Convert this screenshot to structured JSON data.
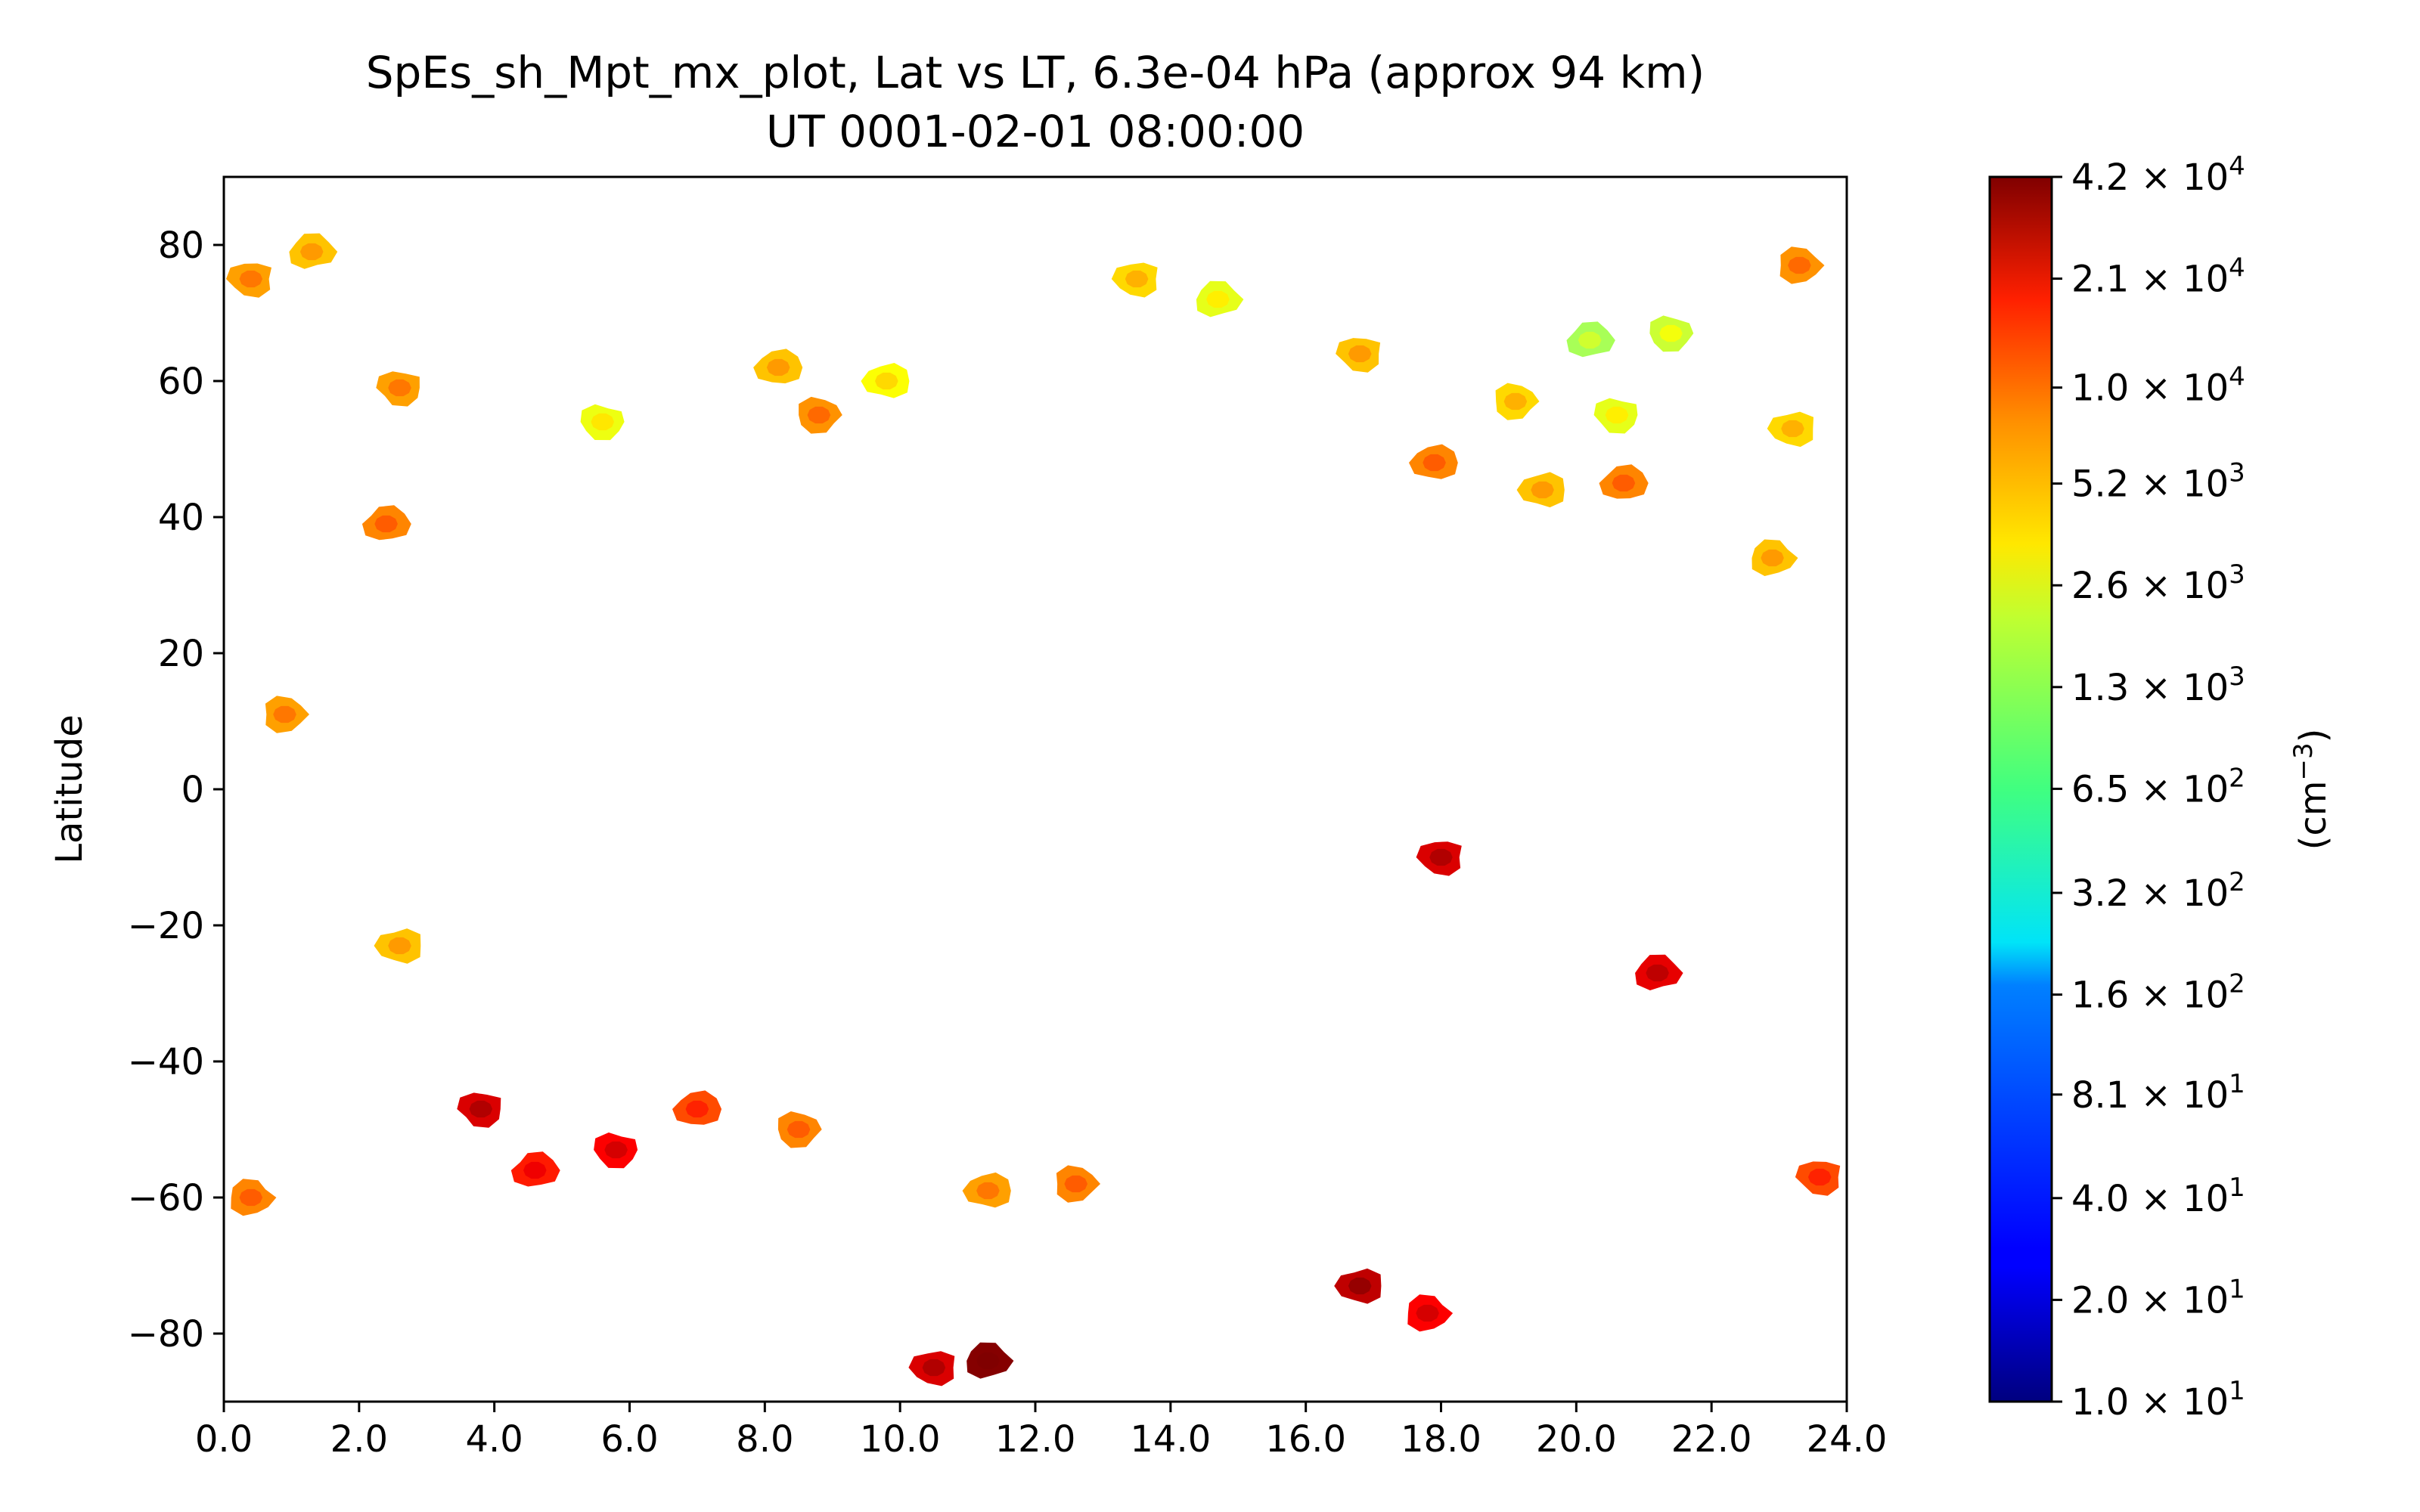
{
  "chart_data": {
    "type": "heatmap",
    "title_lines": [
      "SpEs_sh_Mpt_mx_plot, Lat vs LT, 6.3e-04 hPa (approx 94 km)",
      "UT 0001-02-01 08:00:00"
    ],
    "xlabel": "",
    "ylabel": "Latitude",
    "xlim": [
      0,
      24
    ],
    "ylim": [
      -90,
      90
    ],
    "x_ticks": [
      "0.0",
      "2.0",
      "4.0",
      "6.0",
      "8.0",
      "10.0",
      "12.0",
      "14.0",
      "16.0",
      "18.0",
      "20.0",
      "22.0",
      "24.0"
    ],
    "y_ticks": [
      "−80",
      "−60",
      "−40",
      "−20",
      "0",
      "20",
      "40",
      "60",
      "80"
    ],
    "colorbar": {
      "label": "(cm−3)",
      "scale": "log",
      "colormap": "jet",
      "range": [
        10,
        42000
      ],
      "ticks": [
        {
          "mantissa": "1.0",
          "exp": "1",
          "value": 10
        },
        {
          "mantissa": "2.0",
          "exp": "1",
          "value": 20
        },
        {
          "mantissa": "4.0",
          "exp": "1",
          "value": 40
        },
        {
          "mantissa": "8.1",
          "exp": "1",
          "value": 81
        },
        {
          "mantissa": "1.6",
          "exp": "2",
          "value": 160
        },
        {
          "mantissa": "3.2",
          "exp": "2",
          "value": 320
        },
        {
          "mantissa": "6.5",
          "exp": "2",
          "value": 650
        },
        {
          "mantissa": "1.3",
          "exp": "3",
          "value": 1300
        },
        {
          "mantissa": "2.6",
          "exp": "3",
          "value": 2600
        },
        {
          "mantissa": "5.2",
          "exp": "3",
          "value": 5200
        },
        {
          "mantissa": "1.0",
          "exp": "4",
          "value": 10000
        },
        {
          "mantissa": "2.1",
          "exp": "4",
          "value": 21000
        },
        {
          "mantissa": "4.2",
          "exp": "4",
          "value": 42000
        }
      ]
    },
    "patches": [
      {
        "lt": 0.4,
        "lat": 75,
        "value": 4000
      },
      {
        "lt": 1.3,
        "lat": 79,
        "value": 3000
      },
      {
        "lt": 2.6,
        "lat": 59,
        "value": 4000
      },
      {
        "lt": 2.4,
        "lat": 39,
        "value": 5000
      },
      {
        "lt": 5.6,
        "lat": 54,
        "value": 1600
      },
      {
        "lt": 8.2,
        "lat": 62,
        "value": 3000
      },
      {
        "lt": 8.8,
        "lat": 55,
        "value": 4500
      },
      {
        "lt": 9.8,
        "lat": 60,
        "value": 1800
      },
      {
        "lt": 0.9,
        "lat": 11,
        "value": 4000
      },
      {
        "lt": 2.6,
        "lat": -23,
        "value": 3000
      },
      {
        "lt": 0.4,
        "lat": -60,
        "value": 5000
      },
      {
        "lt": 13.5,
        "lat": 75,
        "value": 2500
      },
      {
        "lt": 14.7,
        "lat": 72,
        "value": 1500
      },
      {
        "lt": 16.8,
        "lat": 64,
        "value": 3000
      },
      {
        "lt": 20.2,
        "lat": 66,
        "value": 900
      },
      {
        "lt": 20.6,
        "lat": 55,
        "value": 1500
      },
      {
        "lt": 20.7,
        "lat": 45,
        "value": 5000
      },
      {
        "lt": 21.4,
        "lat": 67,
        "value": 1200
      },
      {
        "lt": 17.9,
        "lat": 48,
        "value": 5000
      },
      {
        "lt": 19.1,
        "lat": 57,
        "value": 2500
      },
      {
        "lt": 19.5,
        "lat": 44,
        "value": 3000
      },
      {
        "lt": 23.3,
        "lat": 77,
        "value": 4500
      },
      {
        "lt": 23.2,
        "lat": 53,
        "value": 2500
      },
      {
        "lt": 22.9,
        "lat": 34,
        "value": 3000
      },
      {
        "lt": 18.0,
        "lat": -10,
        "value": 20000
      },
      {
        "lt": 21.2,
        "lat": -27,
        "value": 18000
      },
      {
        "lt": 3.8,
        "lat": -47,
        "value": 20000
      },
      {
        "lt": 4.6,
        "lat": -56,
        "value": 12000
      },
      {
        "lt": 5.8,
        "lat": -53,
        "value": 15000
      },
      {
        "lt": 7.0,
        "lat": -47,
        "value": 8000
      },
      {
        "lt": 8.5,
        "lat": -50,
        "value": 5000
      },
      {
        "lt": 11.3,
        "lat": -59,
        "value": 4000
      },
      {
        "lt": 12.6,
        "lat": -58,
        "value": 5000
      },
      {
        "lt": 16.8,
        "lat": -73,
        "value": 25000
      },
      {
        "lt": 17.8,
        "lat": -77,
        "value": 15000
      },
      {
        "lt": 10.5,
        "lat": -85,
        "value": 20000
      },
      {
        "lt": 11.3,
        "lat": -84,
        "value": 40000
      },
      {
        "lt": 23.6,
        "lat": -57,
        "value": 8000
      }
    ]
  }
}
